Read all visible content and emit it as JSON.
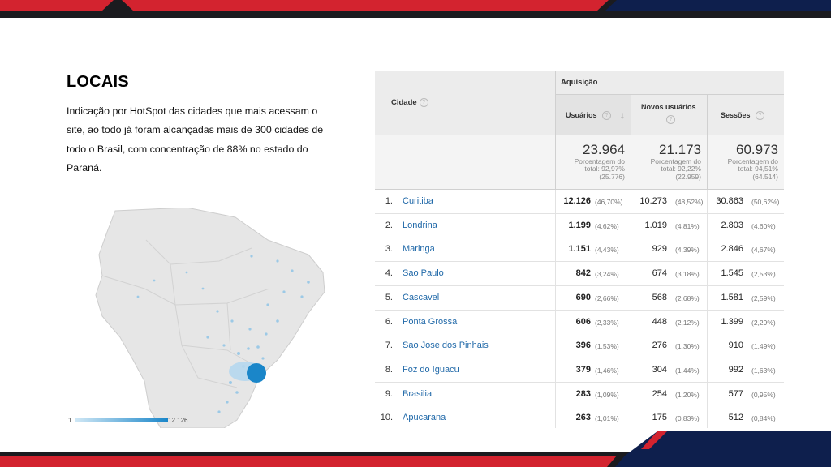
{
  "slide": {
    "title": "LOCAIS",
    "description": "Indicação por HotSpot das cidades que mais acessam o site, ao todo já foram alcançadas mais de 300 cidades de todo o Brasil, com concentração de 88% no estado do Paraná.",
    "colors": {
      "accent_red": "#d3232f",
      "dark_band": "#1b1b1f",
      "navy": "#0e1f4d",
      "link": "#1f68a8",
      "map_blue": "#1a86c9"
    }
  },
  "map": {
    "legend_min": "1",
    "legend_max": "12.126"
  },
  "table": {
    "col_cidade": "Cidade",
    "group_label": "Aquisição",
    "col_usuarios": "Usuários",
    "col_novos": "Novos usuários",
    "col_sessoes": "Sessões",
    "help_glyph": "?",
    "sort_glyph": "↓",
    "totals": {
      "usuarios": {
        "value": "23.964",
        "line1": "Porcentagem do",
        "line2": "total: 92,97%",
        "line3": "(25.776)"
      },
      "novos": {
        "value": "21.173",
        "line1": "Porcentagem do",
        "line2": "total: 92,22%",
        "line3": "(22.959)"
      },
      "sessoes": {
        "value": "60.973",
        "line1": "Porcentagem do",
        "line2": "total: 94,51%",
        "line3": "(64.514)"
      }
    },
    "rows": [
      {
        "n": "1.",
        "city": "Curitiba",
        "u": "12.126",
        "up": "(46,70%)",
        "nu": "10.273",
        "nup": "(48,52%)",
        "s": "30.863",
        "sp": "(50,62%)"
      },
      {
        "n": "2.",
        "city": "Londrina",
        "u": "1.199",
        "up": "(4,62%)",
        "nu": "1.019",
        "nup": "(4,81%)",
        "s": "2.803",
        "sp": "(4,60%)"
      },
      {
        "n": "3.",
        "city": "Maringa",
        "u": "1.151",
        "up": "(4,43%)",
        "nu": "929",
        "nup": "(4,39%)",
        "s": "2.846",
        "sp": "(4,67%)"
      },
      {
        "n": "4.",
        "city": "Sao Paulo",
        "u": "842",
        "up": "(3,24%)",
        "nu": "674",
        "nup": "(3,18%)",
        "s": "1.545",
        "sp": "(2,53%)"
      },
      {
        "n": "5.",
        "city": "Cascavel",
        "u": "690",
        "up": "(2,66%)",
        "nu": "568",
        "nup": "(2,68%)",
        "s": "1.581",
        "sp": "(2,59%)"
      },
      {
        "n": "6.",
        "city": "Ponta Grossa",
        "u": "606",
        "up": "(2,33%)",
        "nu": "448",
        "nup": "(2,12%)",
        "s": "1.399",
        "sp": "(2,29%)"
      },
      {
        "n": "7.",
        "city": "Sao Jose dos Pinhais",
        "u": "396",
        "up": "(1,53%)",
        "nu": "276",
        "nup": "(1,30%)",
        "s": "910",
        "sp": "(1,49%)"
      },
      {
        "n": "8.",
        "city": "Foz do Iguacu",
        "u": "379",
        "up": "(1,46%)",
        "nu": "304",
        "nup": "(1,44%)",
        "s": "992",
        "sp": "(1,63%)"
      },
      {
        "n": "9.",
        "city": "Brasilia",
        "u": "283",
        "up": "(1,09%)",
        "nu": "254",
        "nup": "(1,20%)",
        "s": "577",
        "sp": "(0,95%)"
      },
      {
        "n": "10.",
        "city": "Apucarana",
        "u": "263",
        "up": "(1,01%)",
        "nu": "175",
        "nup": "(0,83%)",
        "s": "512",
        "sp": "(0,84%)"
      }
    ]
  }
}
